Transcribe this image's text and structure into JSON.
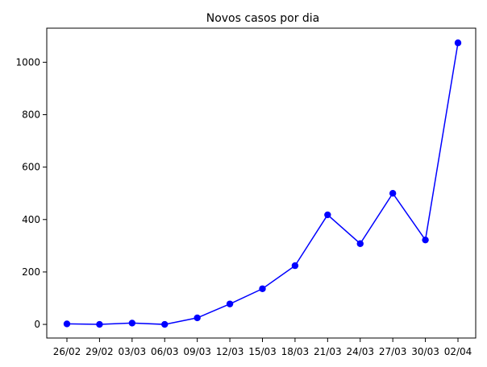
{
  "chart_data": {
    "type": "line",
    "title": "Novos casos por dia",
    "xlabel": "",
    "ylabel": "",
    "categories": [
      "26/02",
      "29/02",
      "03/03",
      "06/03",
      "09/03",
      "12/03",
      "15/03",
      "18/03",
      "21/03",
      "24/03",
      "27/03",
      "30/03",
      "02/04"
    ],
    "values": [
      2,
      0,
      5,
      0,
      25,
      78,
      136,
      224,
      418,
      308,
      500,
      322,
      1074
    ],
    "ylim": [
      -52,
      1130
    ],
    "yticks": [
      0,
      200,
      400,
      600,
      800,
      1000
    ],
    "grid": false,
    "legend": "none",
    "colors": {
      "line": "#0000ff",
      "marker": "#0000ff",
      "axis": "#000000",
      "background": "#ffffff"
    }
  }
}
